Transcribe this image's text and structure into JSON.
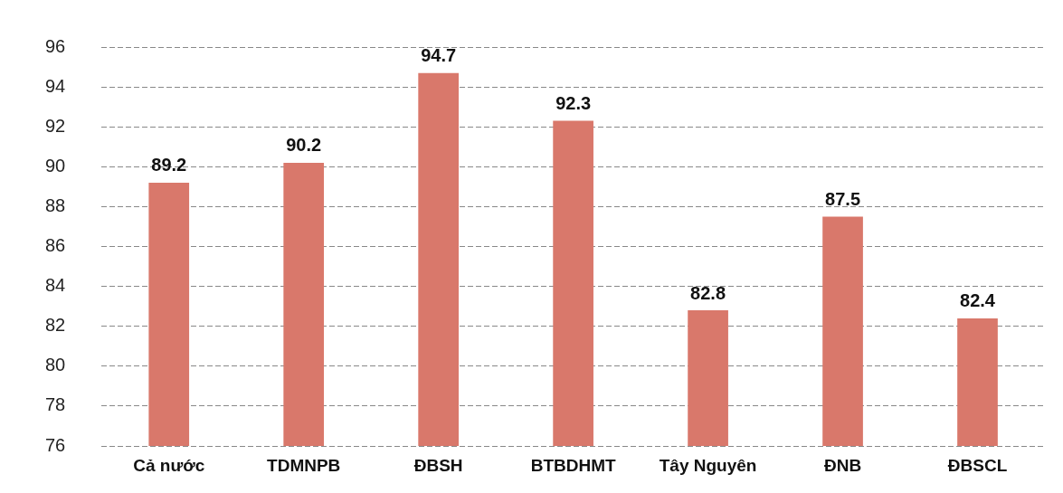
{
  "chart_data": {
    "type": "bar",
    "categories": [
      "Cả nước",
      "TDMNPB",
      "ĐBSH",
      "BTBDHMT",
      "Tây Nguyên",
      "ĐNB",
      "ĐBSCL"
    ],
    "values": [
      89.2,
      90.2,
      94.7,
      92.3,
      82.8,
      87.5,
      82.4
    ],
    "color": "#d9786b",
    "ylim": [
      76,
      96
    ],
    "yticks": [
      76,
      78,
      80,
      82,
      84,
      86,
      88,
      90,
      92,
      94,
      96
    ],
    "grid": "y",
    "data_labels": true,
    "legend": false
  }
}
